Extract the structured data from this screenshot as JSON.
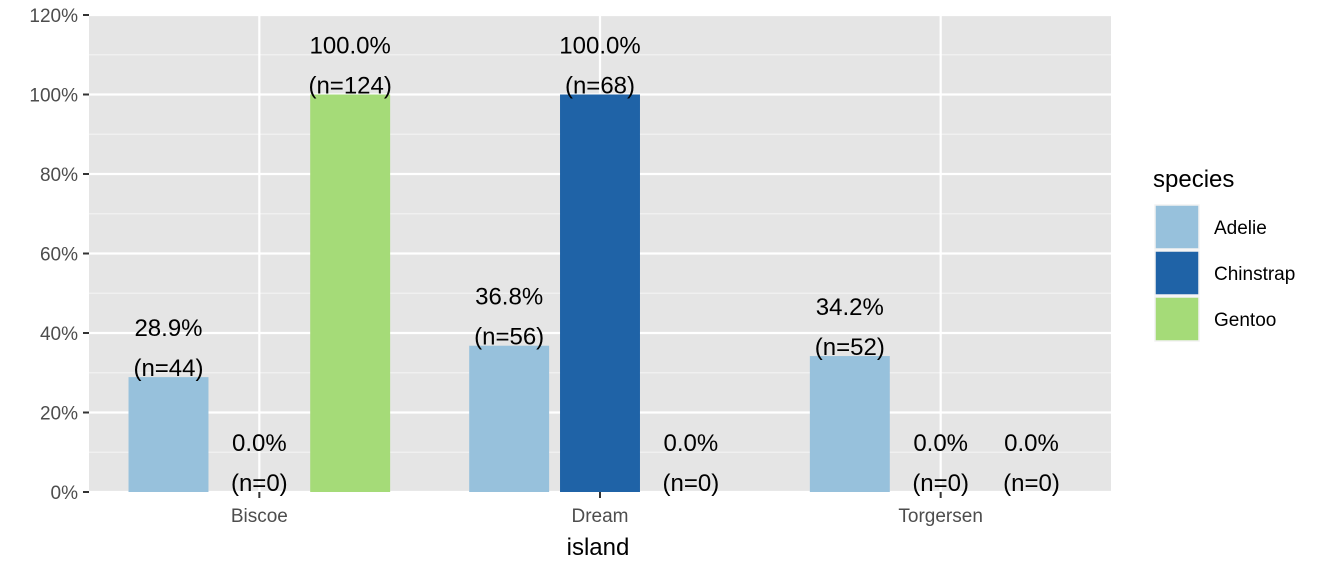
{
  "chart_data": {
    "type": "bar",
    "xlabel": "island",
    "ylabel": "",
    "ylim": [
      0,
      120
    ],
    "y_ticks": [
      0,
      20,
      40,
      60,
      80,
      100,
      120
    ],
    "y_tick_labels": [
      "0%",
      "20%",
      "40%",
      "60%",
      "80%",
      "100%",
      "120%"
    ],
    "categories": [
      "Biscoe",
      "Dream",
      "Torgersen"
    ],
    "legend": {
      "title": "species",
      "position": "right"
    },
    "grid": true,
    "series": [
      {
        "name": "Adelie",
        "color": "#97c1dc",
        "values": [
          28.9,
          36.8,
          34.2
        ],
        "labels": [
          [
            "28.9%",
            "(n=44)"
          ],
          [
            "36.8%",
            "(n=56)"
          ],
          [
            "34.2%",
            "(n=52)"
          ]
        ]
      },
      {
        "name": "Chinstrap",
        "color": "#1f63a7",
        "values": [
          0,
          100,
          0
        ],
        "labels": [
          [
            "0.0%",
            "(n=0)"
          ],
          [
            "100.0%",
            "(n=68)"
          ],
          [
            "0.0%",
            "(n=0)"
          ]
        ]
      },
      {
        "name": "Gentoo",
        "color": "#a5db78",
        "values": [
          100,
          0,
          0
        ],
        "labels": [
          [
            "100.0%",
            "(n=124)"
          ],
          [
            "0.0%",
            "(n=0)"
          ],
          [
            "0.0%",
            "(n=0)"
          ]
        ]
      }
    ]
  }
}
